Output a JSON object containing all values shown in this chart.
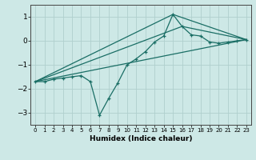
{
  "xlabel": "Humidex (Indice chaleur)",
  "background_color": "#cde8e6",
  "grid_color": "#b0d0ce",
  "line_color": "#1a6e65",
  "xlim": [
    -0.5,
    23.5
  ],
  "ylim": [
    -3.5,
    1.5
  ],
  "xticks": [
    0,
    1,
    2,
    3,
    4,
    5,
    6,
    7,
    8,
    9,
    10,
    11,
    12,
    13,
    14,
    15,
    16,
    17,
    18,
    19,
    20,
    21,
    22,
    23
  ],
  "yticks": [
    -3,
    -2,
    -1,
    0,
    1
  ],
  "line1_x": [
    0,
    1,
    2,
    3,
    4,
    5,
    6,
    7,
    8,
    9,
    10,
    11,
    12,
    13,
    14,
    15,
    16,
    17,
    18,
    19,
    20,
    21,
    22,
    23
  ],
  "line1_y": [
    -1.7,
    -1.7,
    -1.6,
    -1.55,
    -1.5,
    -1.45,
    -1.7,
    -3.1,
    -2.4,
    -1.75,
    -1.0,
    -0.75,
    -0.45,
    -0.05,
    0.2,
    1.1,
    0.6,
    0.25,
    0.2,
    -0.05,
    -0.1,
    -0.05,
    0.0,
    0.05
  ],
  "line2_x": [
    0,
    23
  ],
  "line2_y": [
    -1.7,
    0.05
  ],
  "line3_x": [
    0,
    15,
    23
  ],
  "line3_y": [
    -1.7,
    1.1,
    0.05
  ],
  "line4_x": [
    0,
    16,
    23
  ],
  "line4_y": [
    -1.7,
    0.6,
    0.05
  ]
}
